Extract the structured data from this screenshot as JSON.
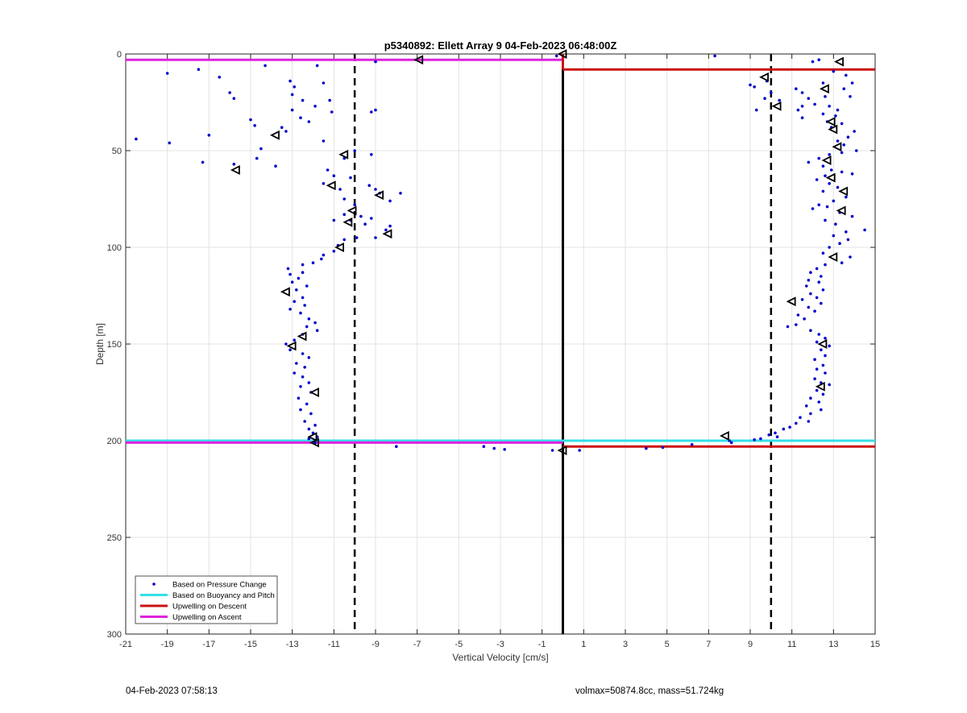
{
  "footer": {
    "timestamp": "04-Feb-2023 07:58:13",
    "vessel_info": "volmax=50874.8cc, mass=51.724kg"
  },
  "colors": {
    "pressure_points": "#0000cc",
    "buoyancy": "#33e0e6",
    "descent": "#cc1111",
    "ascent": "#dd22dd",
    "grid": "#e3e3e3"
  },
  "chart_data": {
    "type": "scatter",
    "title": "p5340892: Ellett Array 9 04-Feb-2023 06:48:00Z",
    "xlabel": "Vertical Velocity [cm/s]",
    "ylabel": "Depth [m]",
    "xlim": [
      -21,
      15
    ],
    "ylim": [
      0,
      300
    ],
    "y_reversed": true,
    "grid": true,
    "xticks": [
      -21,
      -19,
      -17,
      -15,
      -13,
      -11,
      -9,
      -7,
      -5,
      -3,
      -1,
      1,
      3,
      5,
      7,
      9,
      11,
      13,
      15
    ],
    "xtick_labels": [
      "-21",
      "-19",
      "-17",
      "-15",
      "-13",
      "-11",
      "-9",
      "-7",
      "-5",
      "-3",
      "-1",
      "1",
      "3",
      "5",
      "7",
      "9",
      "11",
      "13",
      "15"
    ],
    "yticks": [
      0,
      50,
      100,
      150,
      200,
      250,
      300
    ],
    "ytick_labels": [
      "0",
      "50",
      "100",
      "150",
      "200",
      "250",
      "300"
    ],
    "legend_position": "bottom-left",
    "legend": [
      {
        "label": "Based on Pressure Change",
        "kind": "dot",
        "color": "#0000cc"
      },
      {
        "label": "Based on Buoyancy and Pitch",
        "kind": "line",
        "color": "#33e0e6"
      },
      {
        "label": "Upwelling on Descent",
        "kind": "line",
        "color": "#cc1111"
      },
      {
        "label": "Upwelling on Ascent",
        "kind": "line",
        "color": "#dd22dd"
      }
    ],
    "reference_lines": [
      {
        "x": -10,
        "style": "dashed",
        "color": "#000000"
      },
      {
        "x": 10,
        "style": "dashed",
        "color": "#000000"
      },
      {
        "x": 0,
        "style": "solid",
        "color": "#000000"
      }
    ],
    "series": [
      {
        "kind": "points",
        "color": "#0000cc",
        "points": [
          [
            -20.5,
            44
          ],
          [
            -19,
            10
          ],
          [
            -17.5,
            8
          ],
          [
            -16.5,
            12
          ],
          [
            -16,
            20
          ],
          [
            -15.8,
            23
          ],
          [
            -14.3,
            6
          ],
          [
            -15,
            34
          ],
          [
            -14.8,
            37
          ],
          [
            -17,
            42
          ],
          [
            -18.9,
            46
          ],
          [
            -13.8,
            58
          ],
          [
            -14.7,
            54
          ],
          [
            -17.3,
            56
          ],
          [
            -15.8,
            57
          ],
          [
            -14.5,
            49
          ],
          [
            -13.1,
            14
          ],
          [
            -12.9,
            17
          ],
          [
            -13,
            21
          ],
          [
            -12.5,
            24
          ],
          [
            -13,
            29
          ],
          [
            -11.8,
            6
          ],
          [
            -11.5,
            15
          ],
          [
            -11.2,
            24
          ],
          [
            -11.9,
            27
          ],
          [
            -11.1,
            30
          ],
          [
            -12.2,
            35
          ],
          [
            -12.6,
            33
          ],
          [
            -13.3,
            40
          ],
          [
            -13.5,
            38
          ],
          [
            -11.5,
            45
          ],
          [
            -10,
            50
          ],
          [
            -10.5,
            54
          ],
          [
            -9.2,
            30
          ],
          [
            -9,
            29
          ],
          [
            -9.2,
            52
          ],
          [
            -9,
            4
          ],
          [
            -11.3,
            60
          ],
          [
            -11,
            63
          ],
          [
            -11.5,
            67
          ],
          [
            -10.7,
            70
          ],
          [
            -10.2,
            64
          ],
          [
            -10.5,
            75
          ],
          [
            -9.3,
            68
          ],
          [
            -9,
            70
          ],
          [
            -8.8,
            72
          ],
          [
            -7.8,
            72
          ],
          [
            -8.3,
            76
          ],
          [
            -10,
            78
          ],
          [
            -10.5,
            83
          ],
          [
            -11,
            86
          ],
          [
            -10.2,
            86
          ],
          [
            -9.7,
            84
          ],
          [
            -9.2,
            85
          ],
          [
            -9.5,
            88
          ],
          [
            -8.3,
            89
          ],
          [
            -8.5,
            91
          ],
          [
            -9,
            95
          ],
          [
            -9.9,
            95
          ],
          [
            -10.5,
            96
          ],
          [
            -10.8,
            99
          ],
          [
            -11,
            102
          ],
          [
            -11.5,
            104
          ],
          [
            -11.6,
            106
          ],
          [
            -12,
            108
          ],
          [
            -12.5,
            109
          ],
          [
            -13.2,
            111
          ],
          [
            -13.1,
            114
          ],
          [
            -12.5,
            113
          ],
          [
            -12.7,
            116
          ],
          [
            -13,
            118
          ],
          [
            -12.3,
            120
          ],
          [
            -12.8,
            122
          ],
          [
            -12.5,
            126
          ],
          [
            -12.9,
            128
          ],
          [
            -12.4,
            130
          ],
          [
            -13.1,
            132
          ],
          [
            -12.6,
            134
          ],
          [
            -12.2,
            137
          ],
          [
            -11.9,
            139
          ],
          [
            -12.3,
            141
          ],
          [
            -11.8,
            143
          ],
          [
            -12.5,
            145
          ],
          [
            -12.9,
            148
          ],
          [
            -13.3,
            150
          ],
          [
            -13.1,
            153
          ],
          [
            -12.5,
            155
          ],
          [
            -12.2,
            157
          ],
          [
            -12.8,
            160
          ],
          [
            -12.4,
            162
          ],
          [
            -12.9,
            165
          ],
          [
            -12.5,
            167
          ],
          [
            -12.2,
            170
          ],
          [
            -12.6,
            172
          ],
          [
            -12.1,
            175
          ],
          [
            -12.7,
            178
          ],
          [
            -12.3,
            181
          ],
          [
            -12.6,
            184
          ],
          [
            -12.1,
            186
          ],
          [
            -12.4,
            190
          ],
          [
            -11.9,
            192
          ],
          [
            -12.2,
            194
          ],
          [
            -12,
            196
          ],
          [
            -11.8,
            198
          ],
          [
            -12.2,
            199
          ],
          [
            -11.9,
            201
          ],
          [
            -8,
            203
          ],
          [
            -3.8,
            203
          ],
          [
            -3.3,
            204
          ],
          [
            -2.8,
            204.5
          ],
          [
            -0.5,
            205
          ],
          [
            -0.3,
            1
          ],
          [
            0.8,
            205
          ],
          [
            4,
            204
          ],
          [
            4.8,
            203.5
          ],
          [
            6.2,
            202
          ],
          [
            7.3,
            1
          ],
          [
            8,
            200
          ],
          [
            8.1,
            201
          ],
          [
            9.2,
            199.5
          ],
          [
            9.5,
            199
          ],
          [
            9,
            16
          ],
          [
            9.2,
            17
          ],
          [
            9.8,
            14
          ],
          [
            10,
            20
          ],
          [
            9.7,
            23
          ],
          [
            10.4,
            24
          ],
          [
            9.3,
            29
          ],
          [
            11.2,
            18
          ],
          [
            11.5,
            20
          ],
          [
            11.8,
            23
          ],
          [
            11.5,
            27
          ],
          [
            11.3,
            29
          ],
          [
            11.5,
            33
          ],
          [
            12,
            4
          ],
          [
            12.3,
            3
          ],
          [
            12.5,
            15
          ],
          [
            13,
            9
          ],
          [
            13.6,
            11
          ],
          [
            13.9,
            15
          ],
          [
            13.5,
            18
          ],
          [
            13.8,
            22
          ],
          [
            12.6,
            22
          ],
          [
            12.1,
            26
          ],
          [
            12.8,
            27
          ],
          [
            13.2,
            29
          ],
          [
            12.5,
            31
          ],
          [
            13.1,
            32
          ],
          [
            12.7,
            35
          ],
          [
            13.4,
            36
          ],
          [
            12.9,
            38
          ],
          [
            14,
            40
          ],
          [
            13.7,
            43
          ],
          [
            13.2,
            45
          ],
          [
            13.5,
            47
          ],
          [
            14.1,
            50
          ],
          [
            13.4,
            51
          ],
          [
            12.8,
            52
          ],
          [
            12.3,
            54
          ],
          [
            11.8,
            56
          ],
          [
            12.5,
            58
          ],
          [
            12.9,
            60
          ],
          [
            13.4,
            61
          ],
          [
            13.9,
            62
          ],
          [
            12.6,
            63
          ],
          [
            12.2,
            65
          ],
          [
            12.8,
            67
          ],
          [
            13.2,
            69
          ],
          [
            12.5,
            71
          ],
          [
            13.6,
            74
          ],
          [
            13,
            76
          ],
          [
            12.3,
            78
          ],
          [
            12.7,
            79
          ],
          [
            12,
            80
          ],
          [
            13.3,
            82
          ],
          [
            13.9,
            84
          ],
          [
            12.6,
            86
          ],
          [
            13.1,
            88
          ],
          [
            14.5,
            91
          ],
          [
            13.6,
            92
          ],
          [
            13,
            94
          ],
          [
            13.7,
            96
          ],
          [
            13.3,
            98
          ],
          [
            12.8,
            100
          ],
          [
            12.5,
            103
          ],
          [
            13.8,
            105
          ],
          [
            13.4,
            108
          ],
          [
            12.6,
            109
          ],
          [
            12.2,
            111
          ],
          [
            11.9,
            113
          ],
          [
            12.4,
            115
          ],
          [
            11.8,
            117
          ],
          [
            12.3,
            118
          ],
          [
            11.7,
            120
          ],
          [
            12.5,
            122
          ],
          [
            11.9,
            124
          ],
          [
            12.2,
            126
          ],
          [
            11.5,
            127
          ],
          [
            12.4,
            129
          ],
          [
            11.8,
            131
          ],
          [
            12.1,
            133
          ],
          [
            11.3,
            135
          ],
          [
            11.6,
            137
          ],
          [
            11.2,
            140
          ],
          [
            10.8,
            141
          ],
          [
            11.9,
            143
          ],
          [
            12.3,
            145
          ],
          [
            12.6,
            147
          ],
          [
            12.2,
            149
          ],
          [
            12.8,
            151
          ],
          [
            12.4,
            153
          ],
          [
            12.6,
            156
          ],
          [
            12.1,
            158
          ],
          [
            12.5,
            161
          ],
          [
            12.2,
            163
          ],
          [
            12.6,
            165
          ],
          [
            12.1,
            168
          ],
          [
            12.4,
            170
          ],
          [
            12.8,
            171
          ],
          [
            12.2,
            174
          ],
          [
            12.5,
            176
          ],
          [
            11.9,
            178
          ],
          [
            12.3,
            180
          ],
          [
            11.7,
            182
          ],
          [
            12.4,
            184
          ],
          [
            11.9,
            186
          ],
          [
            11.4,
            188
          ],
          [
            11.8,
            190
          ],
          [
            11.2,
            191
          ],
          [
            10.9,
            193
          ],
          [
            10.6,
            194
          ],
          [
            10.2,
            196
          ],
          [
            9.9,
            197
          ],
          [
            10.3,
            198
          ]
        ]
      },
      {
        "kind": "markers",
        "color": "#000000",
        "points": [
          [
            -6.9,
            3
          ],
          [
            0,
            0
          ],
          [
            -13.8,
            42
          ],
          [
            -10.5,
            52
          ],
          [
            -15.7,
            60
          ],
          [
            -11.1,
            68
          ],
          [
            -8.8,
            73
          ],
          [
            -10.1,
            81
          ],
          [
            -10.3,
            87
          ],
          [
            -8.4,
            93
          ],
          [
            -10.7,
            100
          ],
          [
            -13.3,
            123
          ],
          [
            -12.5,
            146
          ],
          [
            -13,
            151
          ],
          [
            -11.9,
            175
          ],
          [
            -12,
            198
          ],
          [
            13.3,
            4
          ],
          [
            12.6,
            18
          ],
          [
            10.3,
            27
          ],
          [
            12.9,
            35
          ],
          [
            13,
            39
          ],
          [
            13.2,
            48
          ],
          [
            12.7,
            55
          ],
          [
            12.9,
            64
          ],
          [
            13.5,
            71
          ],
          [
            13.4,
            81
          ],
          [
            13,
            105
          ],
          [
            11,
            128
          ],
          [
            12.5,
            150
          ],
          [
            12.4,
            172
          ],
          [
            -11.9,
            201
          ],
          [
            9.7,
            12
          ],
          [
            7.8,
            197.5
          ],
          [
            0,
            205
          ]
        ]
      }
    ],
    "lines": [
      {
        "label": "Upwelling on Descent",
        "color": "#cc1111",
        "segments": [
          [
            [
              0,
              8
            ],
            [
              15,
              8
            ]
          ],
          [
            [
              0,
              203
            ],
            [
              15,
              203
            ]
          ],
          [
            [
              0,
              0
            ],
            [
              0,
              8
            ]
          ]
        ]
      },
      {
        "label": "Upwelling on Ascent",
        "color": "#dd22dd",
        "segments": [
          [
            [
              -21,
              3
            ],
            [
              0,
              3
            ]
          ],
          [
            [
              -21,
              201
            ],
            [
              0,
              201
            ]
          ]
        ]
      },
      {
        "label": "Based on Buoyancy and Pitch",
        "color": "#33e0e6",
        "segments": [
          [
            [
              -21,
              200
            ],
            [
              15,
              200
            ]
          ]
        ]
      }
    ]
  }
}
